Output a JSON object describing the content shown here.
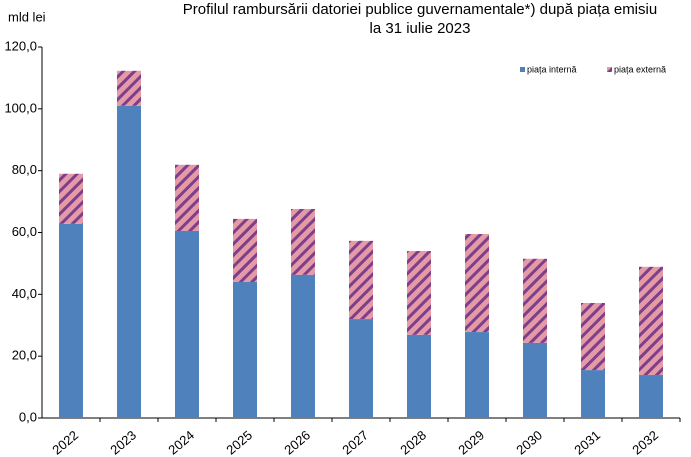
{
  "chart_data": {
    "type": "stacked_bar",
    "title": [
      "Profilul  rambursării datoriei publice guvernamentale*) după piața emisiu",
      "la 31 iulie 2023"
    ],
    "y_label": "mld lei",
    "categories": [
      "2022",
      "2023",
      "2024",
      "2025",
      "2026",
      "2027",
      "2028",
      "2029",
      "2030",
      "2031",
      "2032"
    ],
    "series": [
      {
        "name": "piața internă",
        "color": "#4f81bd",
        "values": [
          62.8,
          101.0,
          60.5,
          44.0,
          46.3,
          32.0,
          26.9,
          27.8,
          24.3,
          15.5,
          13.9
        ]
      },
      {
        "name": "piața externă",
        "color": "#e59aa5",
        "values": [
          16.2,
          11.3,
          21.4,
          20.4,
          21.3,
          25.3,
          27.1,
          31.7,
          27.2,
          21.7,
          35.0
        ]
      }
    ],
    "ylim": [
      0,
      120
    ],
    "yticks": [
      {
        "value": 0,
        "label": "0,0"
      },
      {
        "value": 20,
        "label": "20,0"
      },
      {
        "value": 40,
        "label": "40,0"
      },
      {
        "value": 60,
        "label": "60,0"
      },
      {
        "value": 80,
        "label": "80,0"
      },
      {
        "value": 100,
        "label": "100,0"
      },
      {
        "value": 120,
        "label": "120,0"
      }
    ],
    "legend": "top-right"
  }
}
